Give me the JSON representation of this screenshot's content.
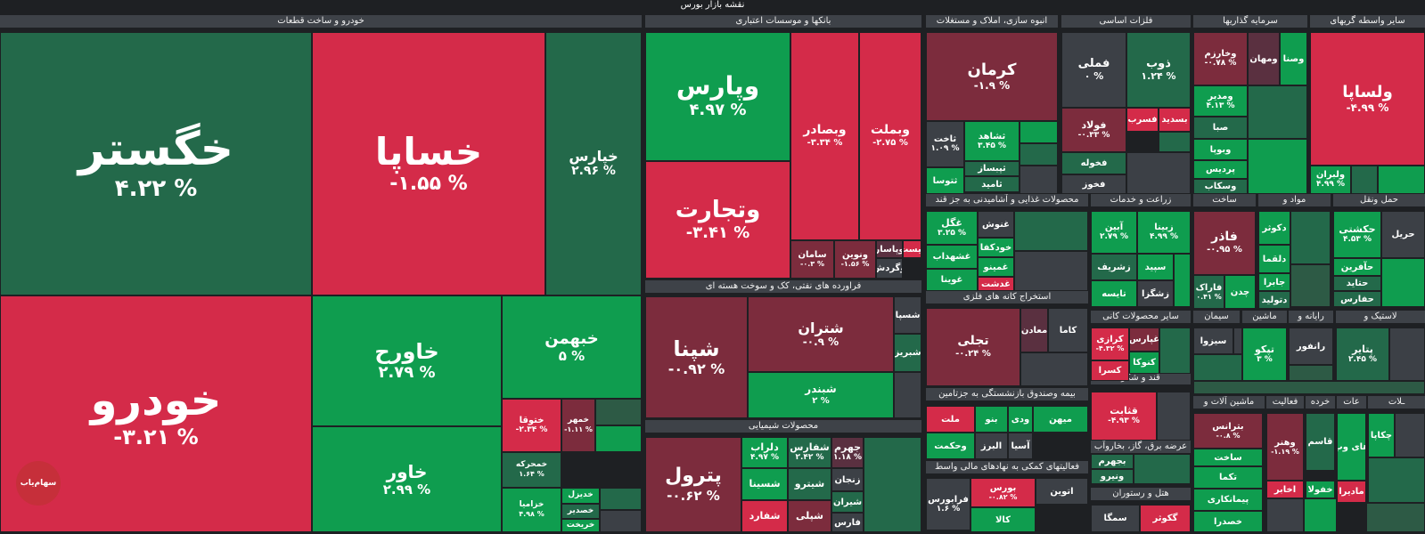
{
  "title": "نقشه بازار بورس",
  "colors": {
    "g1": "#0f9d4f",
    "g2": "#0b8a45",
    "g3": "#23694a",
    "g4": "#2d5a45",
    "r1": "#d42b49",
    "r2": "#b8283f",
    "r3": "#7c2c3d",
    "r4": "#5a3040",
    "n": "#3c4046"
  },
  "sectors": [
    {
      "label": "خودرو و ساخت قطعات"
    },
    {
      "label": "بانکها و موسسات اعتباری"
    },
    {
      "label": "انبوه سازی، املاک و مستغلات"
    },
    {
      "label": "فلزات اساسی"
    },
    {
      "label": "سرمایه گذاریها"
    },
    {
      "label": "سایر واسطه گریهای"
    },
    {
      "label": "فراورده های نفتی، کک و سوخت هسته ای"
    },
    {
      "label": "محصولات غذایی و آشامیدنی به جز قند"
    },
    {
      "label": "زراعت و خدمات"
    },
    {
      "label": "ساخت"
    },
    {
      "label": "مواد و"
    },
    {
      "label": "حمل ونقل"
    },
    {
      "label": "استخراج کانه های فلزی"
    },
    {
      "label": "سایر محصولات کانی"
    },
    {
      "label": "سیمان"
    },
    {
      "label": "ماشین"
    },
    {
      "label": "رایانه و"
    },
    {
      "label": "لاستیک و"
    },
    {
      "label": "محصولات شیمیایی"
    },
    {
      "label": "بیمه وصندوق بازنشستگی به جزتامین"
    },
    {
      "label": "قند و شکر"
    },
    {
      "label": "عرضه برق، گاز، بخاروآب"
    },
    {
      "label": "فعالیتهای کمکی به نهادهای مالی واسط"
    },
    {
      "label": "هتل و رستوران"
    },
    {
      "label": "ماشین آلات و"
    },
    {
      "label": "فعالیت"
    },
    {
      "label": "خرده"
    },
    {
      "label": "عات"
    },
    {
      "label": "ـلات"
    }
  ],
  "tiles": [
    {
      "name": "خگستر",
      "pct": "۴.۲۲ %",
      "color": "g3"
    },
    {
      "name": "خساپا",
      "pct": "-۱.۵۵ %",
      "color": "r1"
    },
    {
      "name": "خپارس",
      "pct": "۲.۹۶ %",
      "color": "g3"
    },
    {
      "name": "خودرو",
      "pct": "-۳.۲۱ %",
      "color": "r1"
    },
    {
      "name": "خاورح",
      "pct": "۲.۷۹ %",
      "color": "g1"
    },
    {
      "name": "خبهمن",
      "pct": "۵ %",
      "color": "g1"
    },
    {
      "name": "خاور",
      "pct": "۲.۹۹ %",
      "color": "g1"
    },
    {
      "name": "ختوقا",
      "pct": "-۲.۳۴ %",
      "color": "r1"
    },
    {
      "name": "خمهر",
      "pct": "-۱.۱۱ %",
      "color": "r3"
    },
    {
      "name": "خمحرکه",
      "pct": "۱.۶۴ %",
      "color": "g3"
    },
    {
      "name": "خزامیا",
      "pct": "۴.۹۸ %",
      "color": "g1"
    },
    {
      "name": "خدیزل",
      "pct": "",
      "color": "g1"
    },
    {
      "name": "خصدیر",
      "pct": "",
      "color": "g3"
    },
    {
      "name": "خریخت",
      "pct": "",
      "color": "g1"
    },
    {
      "name": "وپارس",
      "pct": "۴.۹۷ %",
      "color": "g1"
    },
    {
      "name": "وتجارت",
      "pct": "-۳.۴۱ %",
      "color": "r1"
    },
    {
      "name": "وبصادر",
      "pct": "-۳.۳۴ %",
      "color": "r1"
    },
    {
      "name": "وبملت",
      "pct": "-۲.۷۵ %",
      "color": "r1"
    },
    {
      "name": "سامان",
      "pct": "-۰.۳ %",
      "color": "r3"
    },
    {
      "name": "ونوین",
      "pct": "-۱.۵۶ %",
      "color": "r3"
    },
    {
      "name": "وپاسار",
      "pct": "",
      "color": "r4"
    },
    {
      "name": "وگردش",
      "pct": "",
      "color": "n"
    },
    {
      "name": "بیست",
      "pct": "",
      "color": "r1"
    },
    {
      "name": "شپنا",
      "pct": "-۰.۹۲ %",
      "color": "r3"
    },
    {
      "name": "شتران",
      "pct": "-۰.۹ %",
      "color": "r3"
    },
    {
      "name": "شبندر",
      "pct": "۲ %",
      "color": "g1"
    },
    {
      "name": "شسپا",
      "pct": "",
      "color": "n"
    },
    {
      "name": "شبریز",
      "pct": "",
      "color": "g3"
    },
    {
      "name": "پترول",
      "pct": "-۰.۶۲ %",
      "color": "r3"
    },
    {
      "name": "شفارس",
      "pct": "۲.۴۲ %",
      "color": "g3"
    },
    {
      "name": "جهرم",
      "pct": "۱.۱۸ %",
      "color": "r4"
    },
    {
      "name": "دلراب",
      "pct": "۴.۹۷ %",
      "color": "g1"
    },
    {
      "name": "شسینا",
      "pct": "",
      "color": "g1"
    },
    {
      "name": "شیترو",
      "pct": "",
      "color": "g3"
    },
    {
      "name": "زنجان",
      "pct": "",
      "color": "n"
    },
    {
      "name": "شیران",
      "pct": "",
      "color": "g3"
    },
    {
      "name": "شفارد",
      "pct": "",
      "color": "r1"
    },
    {
      "name": "شپلی",
      "pct": "",
      "color": "r3"
    },
    {
      "name": "فارس",
      "pct": "",
      "color": "n"
    },
    {
      "name": "کرمان",
      "pct": "-۱.۹ %",
      "color": "r3"
    },
    {
      "name": "ثاخت",
      "pct": "۱.۰۹ %",
      "color": "n"
    },
    {
      "name": "ثشاهد",
      "pct": "۳.۴۵ %",
      "color": "g1"
    },
    {
      "name": "ثپبساز",
      "pct": "",
      "color": "g3"
    },
    {
      "name": "ثامید",
      "pct": "",
      "color": "g3"
    },
    {
      "name": "ثتوسا",
      "pct": "",
      "color": "g1"
    },
    {
      "name": "فملی",
      "pct": "۰ %",
      "color": "n"
    },
    {
      "name": "ذوب",
      "pct": "۱.۲۴ %",
      "color": "g3"
    },
    {
      "name": "فولاد",
      "pct": "-۰.۳۳ %",
      "color": "r3"
    },
    {
      "name": "فسرب",
      "pct": "",
      "color": "r1"
    },
    {
      "name": "بسدید",
      "pct": "",
      "color": "r1"
    },
    {
      "name": "فخوله",
      "pct": "",
      "color": "g3"
    },
    {
      "name": "فخوز",
      "pct": "",
      "color": "n"
    },
    {
      "name": "وخارزم",
      "pct": "-۰.۷۸ %",
      "color": "r3"
    },
    {
      "name": "ومهان",
      "pct": "",
      "color": "r4"
    },
    {
      "name": "وصنا",
      "pct": "",
      "color": "g1"
    },
    {
      "name": "ومدیر",
      "pct": "۴.۱۳ %",
      "color": "g1"
    },
    {
      "name": "صبا",
      "pct": "",
      "color": "g3"
    },
    {
      "name": "وبوپا",
      "pct": "",
      "color": "g1"
    },
    {
      "name": "پردیس",
      "pct": "",
      "color": "g1"
    },
    {
      "name": "وسکاب",
      "pct": "",
      "color": "g3"
    },
    {
      "name": "ولساپا",
      "pct": "-۴.۹۹ %",
      "color": "r1"
    },
    {
      "name": "ولبران",
      "pct": "۴.۹۹ %",
      "color": "g1"
    },
    {
      "name": "غگل",
      "pct": "۳.۲۵ %",
      "color": "g1"
    },
    {
      "name": "غشهداب",
      "pct": "",
      "color": "g1"
    },
    {
      "name": "غوینا",
      "pct": "",
      "color": "g1"
    },
    {
      "name": "غنوش",
      "pct": "",
      "color": "n"
    },
    {
      "name": "خودکفا",
      "pct": "",
      "color": "g1"
    },
    {
      "name": "غمینو",
      "pct": "",
      "color": "g1"
    },
    {
      "name": "غدشت",
      "pct": "",
      "color": "r1"
    },
    {
      "name": "آبین",
      "pct": "۲.۷۹ %",
      "color": "g1"
    },
    {
      "name": "زبینا",
      "pct": "۴.۹۹ %",
      "color": "g1"
    },
    {
      "name": "زشریف",
      "pct": "",
      "color": "g3"
    },
    {
      "name": "سپید",
      "pct": "",
      "color": "g1"
    },
    {
      "name": "تایسه",
      "pct": "",
      "color": "g1"
    },
    {
      "name": "زشگزا",
      "pct": "",
      "color": "n"
    },
    {
      "name": "فاذر",
      "pct": "-۰.۹۵ %",
      "color": "r3"
    },
    {
      "name": "فاراک",
      "pct": "۰.۴۱ %",
      "color": "g3"
    },
    {
      "name": "چدن",
      "pct": "",
      "color": "g1"
    },
    {
      "name": "دکوثر",
      "pct": "",
      "color": "g1"
    },
    {
      "name": "دلقما",
      "pct": "",
      "color": "g1"
    },
    {
      "name": "جابرا",
      "pct": "",
      "color": "g1"
    },
    {
      "name": "دتولید",
      "pct": "",
      "color": "g3"
    },
    {
      "name": "حکشتی",
      "pct": "۴.۵۳ %",
      "color": "g1"
    },
    {
      "name": "حریل",
      "pct": "",
      "color": "n"
    },
    {
      "name": "حآفرین",
      "pct": "",
      "color": "g1"
    },
    {
      "name": "حتاید",
      "pct": "",
      "color": "g3"
    },
    {
      "name": "حفارس",
      "pct": "",
      "color": "g3"
    },
    {
      "name": "تجلی",
      "pct": "-۰.۲۴ %",
      "color": "r3"
    },
    {
      "name": "معادن",
      "pct": "",
      "color": "r4"
    },
    {
      "name": "کاما",
      "pct": "",
      "color": "n"
    },
    {
      "name": "کرازی",
      "pct": "-۴.۳۲ %",
      "color": "r1"
    },
    {
      "name": "غپارس",
      "pct": "",
      "color": "r3"
    },
    {
      "name": "کنوکا",
      "pct": "",
      "color": "g1"
    },
    {
      "name": "کسرا",
      "pct": "",
      "color": "r1"
    },
    {
      "name": "سیزوا",
      "pct": "",
      "color": "n"
    },
    {
      "name": "تپکو",
      "pct": "۳ %",
      "color": "g1"
    },
    {
      "name": "رانفور",
      "pct": "",
      "color": "n"
    },
    {
      "name": "پتایر",
      "pct": "۲.۴۵ %",
      "color": "g3"
    },
    {
      "name": "ملت",
      "pct": "",
      "color": "r1"
    },
    {
      "name": "وحکمت",
      "pct": "",
      "color": "g1"
    },
    {
      "name": "بنو",
      "pct": "",
      "color": "g1"
    },
    {
      "name": "البرز",
      "pct": "",
      "color": "n"
    },
    {
      "name": "ودی",
      "pct": "",
      "color": "g1"
    },
    {
      "name": "آسیا",
      "pct": "",
      "color": "n"
    },
    {
      "name": "میهن",
      "pct": "",
      "color": "g1"
    },
    {
      "name": "قثابت",
      "pct": "-۴.۹۳ %",
      "color": "r1"
    },
    {
      "name": "بجهرم",
      "pct": "",
      "color": "g3"
    },
    {
      "name": "ونیرو",
      "pct": "",
      "color": "g3"
    },
    {
      "name": "فرابورس",
      "pct": "۱.۶ %",
      "color": "n"
    },
    {
      "name": "بورس",
      "pct": "-۰.۸۲ %",
      "color": "r1"
    },
    {
      "name": "کالا",
      "pct": "",
      "color": "g1"
    },
    {
      "name": "اتوین",
      "pct": "",
      "color": "n"
    },
    {
      "name": "سمگا",
      "pct": "",
      "color": "n"
    },
    {
      "name": "گکوثر",
      "pct": "",
      "color": "r1"
    },
    {
      "name": "بترانس",
      "pct": "-۰.۸ %",
      "color": "r3"
    },
    {
      "name": "ساخت",
      "pct": "",
      "color": "g1"
    },
    {
      "name": "تکما",
      "pct": "",
      "color": "g1"
    },
    {
      "name": "پیمانکاری",
      "pct": "",
      "color": "g1"
    },
    {
      "name": "خصدرا",
      "pct": "",
      "color": "g1"
    },
    {
      "name": "وهنر",
      "pct": "-۱.۱۹ %",
      "color": "r3"
    },
    {
      "name": "اخابر",
      "pct": "",
      "color": "r1"
    },
    {
      "name": "قاسم",
      "pct": "",
      "color": "g3"
    },
    {
      "name": "خفولا",
      "pct": "",
      "color": "g1"
    },
    {
      "name": "های وب",
      "pct": "",
      "color": "g1"
    },
    {
      "name": "مادیرا",
      "pct": "",
      "color": "r1"
    },
    {
      "name": "چکاپا",
      "pct": "",
      "color": "g1"
    }
  ],
  "logo_text": "سهام‌یاب"
}
